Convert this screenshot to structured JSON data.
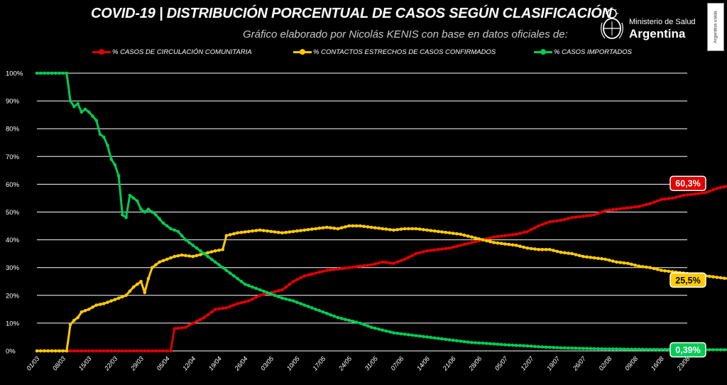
{
  "header": {
    "title": "COVID-19  |  DISTRIBUCIÓN PORCENTUAL DE CASOS SEGÚN CLASIFICACIÓN",
    "subtitle": "Gráfico elaborado por Nicolás KENIS con base en datos oficiales de:"
  },
  "logo": {
    "line1": "Ministerio de Salud",
    "line2": "Argentina",
    "seal_icon": "argentina-coat-of-arms-icon"
  },
  "side_tag": "Argentina unida",
  "colors": {
    "comunitaria": "#e00000",
    "contactos": "#ffcc00",
    "importados": "#00cc55",
    "grid": "#ffffff",
    "background": "#000000"
  },
  "chart_data": {
    "type": "line",
    "title": "COVID-19  |  DISTRIBUCIÓN PORCENTUAL DE CASOS SEGÚN CLASIFICACIÓN",
    "xlabel": "",
    "ylabel": "",
    "ylim": [
      0,
      100
    ],
    "yticks": [
      "0%",
      "10%",
      "20%",
      "30%",
      "40%",
      "50%",
      "60%",
      "70%",
      "80%",
      "90%",
      "100%"
    ],
    "xticks": [
      "01/03",
      "08/03",
      "15/03",
      "22/03",
      "29/03",
      "05/04",
      "12/04",
      "19/04",
      "26/04",
      "03/05",
      "10/05",
      "17/05",
      "24/05",
      "31/05",
      "07/06",
      "14/06",
      "21/06",
      "28/06",
      "05/07",
      "12/07",
      "19/07",
      "26/07",
      "02/08",
      "09/08",
      "16/08",
      "23/08"
    ],
    "grid": true,
    "legend_position": "top",
    "series": [
      {
        "name": "% CASOS DE CIRCULACIÓN COMUNITARIA",
        "color": "#e00000",
        "end_label": "60,3%",
        "points": [
          [
            0,
            0
          ],
          [
            36,
            0
          ],
          [
            37,
            8
          ],
          [
            40,
            8.5
          ],
          [
            42,
            10
          ],
          [
            45,
            12
          ],
          [
            48,
            15
          ],
          [
            51,
            15.5
          ],
          [
            54,
            17
          ],
          [
            57,
            18
          ],
          [
            60,
            20
          ],
          [
            63,
            21
          ],
          [
            66,
            22
          ],
          [
            69,
            25
          ],
          [
            72,
            27
          ],
          [
            75,
            28
          ],
          [
            78,
            29
          ],
          [
            81,
            29.5
          ],
          [
            84,
            30
          ],
          [
            87,
            30.5
          ],
          [
            90,
            31
          ],
          [
            93,
            32
          ],
          [
            96,
            31.5
          ],
          [
            99,
            33
          ],
          [
            102,
            35
          ],
          [
            105,
            36
          ],
          [
            108,
            36.5
          ],
          [
            111,
            37
          ],
          [
            114,
            38
          ],
          [
            117,
            39
          ],
          [
            120,
            40
          ],
          [
            123,
            41
          ],
          [
            126,
            41.5
          ],
          [
            129,
            42
          ],
          [
            132,
            43
          ],
          [
            135,
            45
          ],
          [
            138,
            46.5
          ],
          [
            141,
            47
          ],
          [
            144,
            48
          ],
          [
            147,
            48.5
          ],
          [
            150,
            49
          ],
          [
            153,
            50.5
          ],
          [
            156,
            51
          ],
          [
            159,
            51.5
          ],
          [
            162,
            52
          ],
          [
            165,
            53
          ],
          [
            168,
            54.5
          ],
          [
            171,
            55
          ],
          [
            174,
            56
          ],
          [
            177,
            56.5
          ],
          [
            180,
            57
          ],
          [
            183,
            58.5
          ],
          [
            186,
            59.5
          ],
          [
            189,
            60.3
          ]
        ]
      },
      {
        "name": "% CONTACTOS ESTRECHOS DE CASOS CONFIRMADOS",
        "color": "#ffcc00",
        "end_label": "25,5%",
        "points": [
          [
            0,
            0
          ],
          [
            8,
            0
          ],
          [
            9,
            9.5
          ],
          [
            10,
            11
          ],
          [
            11,
            12
          ],
          [
            12,
            14
          ],
          [
            14,
            15
          ],
          [
            16,
            16.5
          ],
          [
            18,
            17
          ],
          [
            20,
            18
          ],
          [
            22,
            19
          ],
          [
            24,
            20
          ],
          [
            26,
            23
          ],
          [
            28,
            25
          ],
          [
            29,
            21
          ],
          [
            30,
            26
          ],
          [
            31,
            30
          ],
          [
            33,
            32
          ],
          [
            35,
            33
          ],
          [
            37,
            34
          ],
          [
            39,
            34.5
          ],
          [
            42,
            34
          ],
          [
            45,
            35
          ],
          [
            48,
            36
          ],
          [
            50,
            36.5
          ],
          [
            51,
            41.5
          ],
          [
            54,
            42.5
          ],
          [
            57,
            43
          ],
          [
            60,
            43.5
          ],
          [
            63,
            43
          ],
          [
            66,
            42.5
          ],
          [
            69,
            43
          ],
          [
            72,
            43.5
          ],
          [
            75,
            44
          ],
          [
            78,
            44.5
          ],
          [
            81,
            44
          ],
          [
            84,
            45
          ],
          [
            87,
            45
          ],
          [
            90,
            44.5
          ],
          [
            93,
            44
          ],
          [
            96,
            43.5
          ],
          [
            99,
            44
          ],
          [
            102,
            44
          ],
          [
            105,
            43.5
          ],
          [
            108,
            43
          ],
          [
            111,
            42.5
          ],
          [
            114,
            42
          ],
          [
            117,
            41
          ],
          [
            120,
            40
          ],
          [
            123,
            39
          ],
          [
            126,
            38.5
          ],
          [
            129,
            38
          ],
          [
            132,
            37
          ],
          [
            135,
            36.5
          ],
          [
            138,
            36.5
          ],
          [
            141,
            35.5
          ],
          [
            144,
            35
          ],
          [
            147,
            34
          ],
          [
            150,
            33.5
          ],
          [
            153,
            33
          ],
          [
            156,
            32
          ],
          [
            159,
            31.5
          ],
          [
            162,
            30.5
          ],
          [
            165,
            30
          ],
          [
            168,
            29
          ],
          [
            171,
            28.5
          ],
          [
            174,
            28
          ],
          [
            177,
            27.5
          ],
          [
            180,
            27
          ],
          [
            183,
            26.5
          ],
          [
            186,
            26
          ],
          [
            189,
            25.5
          ]
        ]
      },
      {
        "name": "% CASOS IMPORTADOS",
        "color": "#00cc55",
        "end_label": "0,39%",
        "points": [
          [
            0,
            100
          ],
          [
            8,
            100
          ],
          [
            9,
            90
          ],
          [
            10,
            88
          ],
          [
            11,
            89
          ],
          [
            12,
            86
          ],
          [
            13,
            87
          ],
          [
            14,
            86
          ],
          [
            16,
            83
          ],
          [
            17,
            78
          ],
          [
            18,
            77
          ],
          [
            19,
            74
          ],
          [
            20,
            69
          ],
          [
            21,
            67
          ],
          [
            22,
            63
          ],
          [
            23,
            49
          ],
          [
            24,
            48
          ],
          [
            25,
            56
          ],
          [
            26,
            55
          ],
          [
            27,
            54
          ],
          [
            28,
            51
          ],
          [
            29,
            50
          ],
          [
            30,
            51
          ],
          [
            31,
            50
          ],
          [
            32,
            49
          ],
          [
            34,
            46
          ],
          [
            36,
            44
          ],
          [
            38,
            43
          ],
          [
            40,
            40
          ],
          [
            42,
            38
          ],
          [
            44,
            36
          ],
          [
            46,
            34
          ],
          [
            48,
            32
          ],
          [
            50,
            30
          ],
          [
            52,
            28
          ],
          [
            54,
            26
          ],
          [
            56,
            24
          ],
          [
            58,
            23
          ],
          [
            60,
            22
          ],
          [
            63,
            20.5
          ],
          [
            66,
            19
          ],
          [
            69,
            18
          ],
          [
            72,
            16.5
          ],
          [
            75,
            15
          ],
          [
            78,
            13.5
          ],
          [
            81,
            12
          ],
          [
            84,
            11
          ],
          [
            87,
            10
          ],
          [
            90,
            8.5
          ],
          [
            93,
            7.5
          ],
          [
            96,
            6.5
          ],
          [
            99,
            6
          ],
          [
            102,
            5.5
          ],
          [
            105,
            5
          ],
          [
            108,
            4.5
          ],
          [
            111,
            4
          ],
          [
            114,
            3.5
          ],
          [
            117,
            3
          ],
          [
            120,
            2.8
          ],
          [
            123,
            2.5
          ],
          [
            126,
            2.2
          ],
          [
            129,
            2
          ],
          [
            132,
            1.8
          ],
          [
            135,
            1.5
          ],
          [
            138,
            1.3
          ],
          [
            141,
            1.1
          ],
          [
            144,
            1
          ],
          [
            147,
            0.9
          ],
          [
            150,
            0.8
          ],
          [
            153,
            0.7
          ],
          [
            156,
            0.7
          ],
          [
            159,
            0.6
          ],
          [
            162,
            0.6
          ],
          [
            165,
            0.5
          ],
          [
            168,
            0.5
          ],
          [
            171,
            0.5
          ],
          [
            174,
            0.45
          ],
          [
            177,
            0.45
          ],
          [
            180,
            0.4
          ],
          [
            183,
            0.4
          ],
          [
            186,
            0.4
          ],
          [
            189,
            0.39
          ]
        ]
      }
    ]
  }
}
